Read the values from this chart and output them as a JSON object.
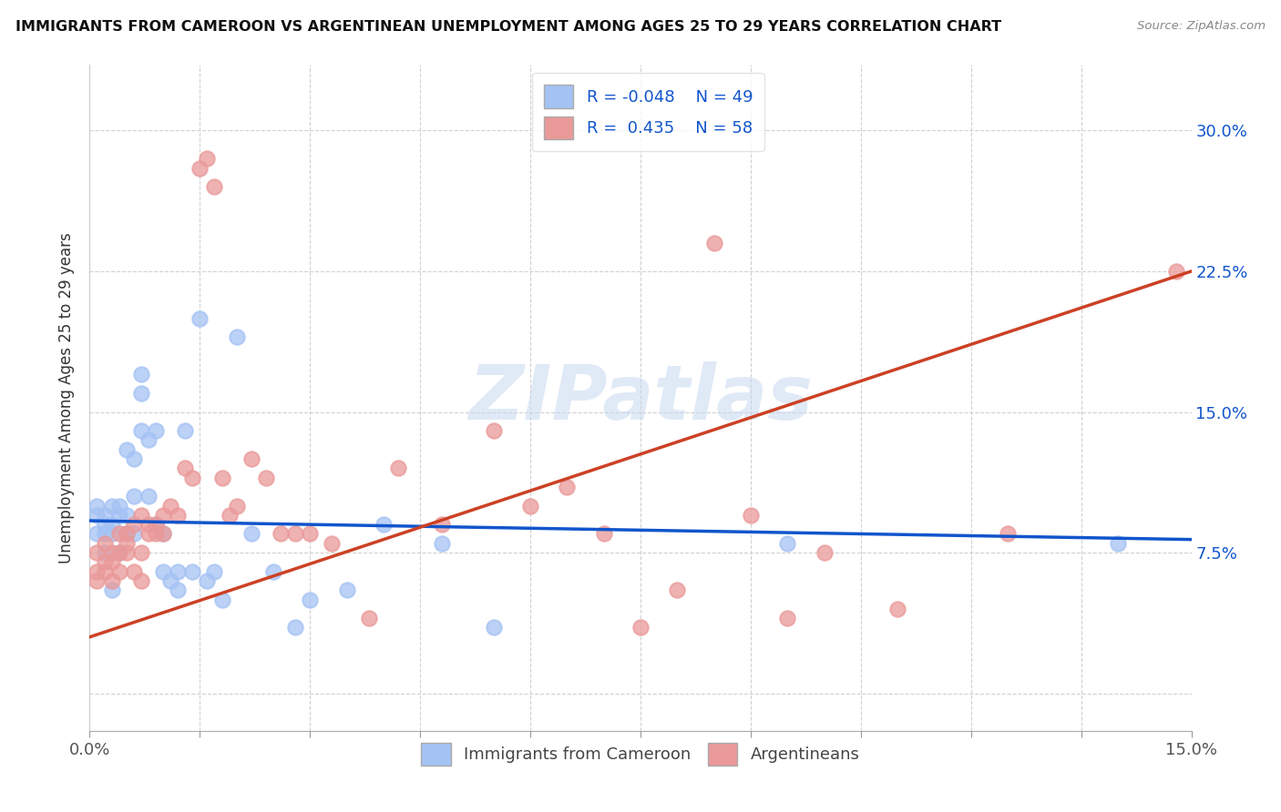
{
  "title": "IMMIGRANTS FROM CAMEROON VS ARGENTINEAN UNEMPLOYMENT AMONG AGES 25 TO 29 YEARS CORRELATION CHART",
  "source": "Source: ZipAtlas.com",
  "ylabel": "Unemployment Among Ages 25 to 29 years",
  "xlim": [
    0.0,
    0.15
  ],
  "ylim": [
    -0.02,
    0.335
  ],
  "yticks": [
    0.0,
    0.075,
    0.15,
    0.225,
    0.3
  ],
  "ytick_labels": [
    "",
    "7.5%",
    "15.0%",
    "22.5%",
    "30.0%"
  ],
  "legend_blue_R": "-0.048",
  "legend_blue_N": "49",
  "legend_pink_R": "0.435",
  "legend_pink_N": "58",
  "blue_color": "#a4c2f4",
  "pink_color": "#ea9999",
  "blue_line_color": "#1155cc",
  "pink_line_color": "#cc4125",
  "watermark": "ZIPatlas",
  "blue_line_x0": 0.0,
  "blue_line_y0": 0.092,
  "blue_line_x1": 0.15,
  "blue_line_y1": 0.082,
  "pink_line_x0": 0.0,
  "pink_line_y0": 0.03,
  "pink_line_x1": 0.15,
  "pink_line_y1": 0.225,
  "blue_points_x": [
    0.001,
    0.001,
    0.001,
    0.002,
    0.002,
    0.002,
    0.002,
    0.003,
    0.003,
    0.003,
    0.003,
    0.004,
    0.004,
    0.004,
    0.005,
    0.005,
    0.005,
    0.006,
    0.006,
    0.006,
    0.007,
    0.007,
    0.007,
    0.008,
    0.008,
    0.009,
    0.009,
    0.01,
    0.01,
    0.011,
    0.012,
    0.012,
    0.013,
    0.014,
    0.015,
    0.016,
    0.017,
    0.018,
    0.02,
    0.022,
    0.025,
    0.028,
    0.03,
    0.035,
    0.04,
    0.048,
    0.055,
    0.095,
    0.14
  ],
  "blue_points_y": [
    0.085,
    0.095,
    0.1,
    0.075,
    0.085,
    0.09,
    0.095,
    0.085,
    0.09,
    0.1,
    0.055,
    0.095,
    0.1,
    0.075,
    0.085,
    0.095,
    0.13,
    0.085,
    0.105,
    0.125,
    0.14,
    0.16,
    0.17,
    0.135,
    0.105,
    0.09,
    0.14,
    0.085,
    0.065,
    0.06,
    0.065,
    0.055,
    0.14,
    0.065,
    0.2,
    0.06,
    0.065,
    0.05,
    0.19,
    0.085,
    0.065,
    0.035,
    0.05,
    0.055,
    0.09,
    0.08,
    0.035,
    0.08,
    0.08
  ],
  "pink_points_x": [
    0.001,
    0.001,
    0.001,
    0.002,
    0.002,
    0.002,
    0.003,
    0.003,
    0.003,
    0.004,
    0.004,
    0.004,
    0.005,
    0.005,
    0.005,
    0.006,
    0.006,
    0.007,
    0.007,
    0.007,
    0.008,
    0.008,
    0.009,
    0.009,
    0.01,
    0.01,
    0.011,
    0.012,
    0.013,
    0.014,
    0.015,
    0.016,
    0.017,
    0.018,
    0.019,
    0.02,
    0.022,
    0.024,
    0.026,
    0.028,
    0.03,
    0.033,
    0.038,
    0.042,
    0.048,
    0.055,
    0.06,
    0.065,
    0.07,
    0.075,
    0.08,
    0.085,
    0.09,
    0.095,
    0.1,
    0.11,
    0.125,
    0.148
  ],
  "pink_points_y": [
    0.06,
    0.065,
    0.075,
    0.065,
    0.07,
    0.08,
    0.06,
    0.07,
    0.075,
    0.065,
    0.075,
    0.085,
    0.075,
    0.08,
    0.085,
    0.065,
    0.09,
    0.06,
    0.075,
    0.095,
    0.085,
    0.09,
    0.085,
    0.09,
    0.085,
    0.095,
    0.1,
    0.095,
    0.12,
    0.115,
    0.28,
    0.285,
    0.27,
    0.115,
    0.095,
    0.1,
    0.125,
    0.115,
    0.085,
    0.085,
    0.085,
    0.08,
    0.04,
    0.12,
    0.09,
    0.14,
    0.1,
    0.11,
    0.085,
    0.035,
    0.055,
    0.24,
    0.095,
    0.04,
    0.075,
    0.045,
    0.085,
    0.225
  ]
}
